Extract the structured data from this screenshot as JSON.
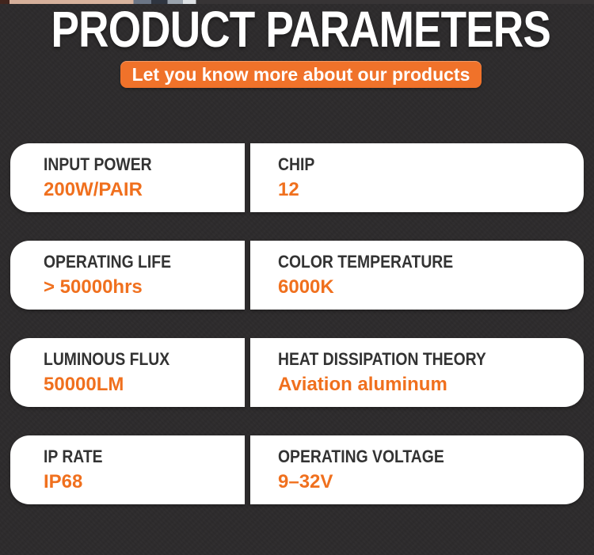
{
  "page": {
    "title": "PRODUCT PARAMETERS",
    "subtitle": "Let you know more about our products"
  },
  "colors": {
    "background": "#2d2b2c",
    "accent_orange": "#f0722a",
    "value_orange": "#f0701e",
    "label_dark": "#333333",
    "card_white": "#ffffff"
  },
  "parameters": [
    {
      "left": {
        "label": "INPUT POWER",
        "value": "200W/PAIR"
      },
      "right": {
        "label": "CHIP",
        "value": "12"
      }
    },
    {
      "left": {
        "label": "OPERATING LIFE",
        "value": "> 50000hrs"
      },
      "right": {
        "label": "COLOR TEMPERATURE",
        "value": "6000K"
      }
    },
    {
      "left": {
        "label": "LUMINOUS FLUX",
        "value": "50000LM"
      },
      "right": {
        "label": "HEAT DISSIPATION THEORY",
        "value": "Aviation aluminum"
      }
    },
    {
      "left": {
        "label": "IP RATE",
        "value": "IP68"
      },
      "right": {
        "label": "OPERATING VOLTAGE",
        "value": "9–32V"
      }
    }
  ]
}
